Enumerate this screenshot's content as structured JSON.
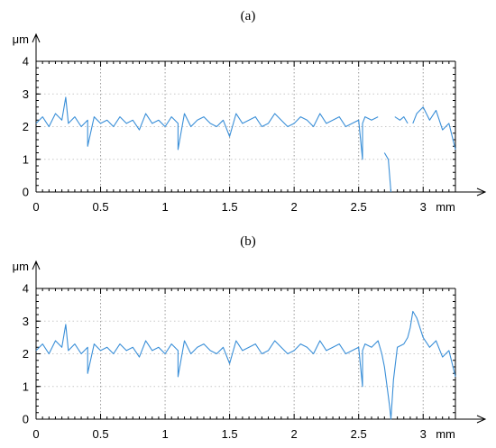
{
  "chart_data": [
    {
      "type": "line",
      "panel_label": "(a)",
      "title": "",
      "xlabel": "mm",
      "ylabel": "μm",
      "xlim": [
        0,
        3.25
      ],
      "ylim": [
        0,
        4
      ],
      "x_ticks": [
        "0",
        "0.5",
        "1",
        "1.5",
        "2",
        "2.5",
        "3"
      ],
      "y_ticks": [
        "0",
        "1",
        "2",
        "3",
        "4"
      ],
      "x_unit": "mm",
      "y_unit": "μm",
      "grid": "dotted vertical",
      "line_color": "#3a8fd8",
      "series": [
        {
          "x": [
            0,
            0.05,
            0.1,
            0.15,
            0.2,
            0.23,
            0.25,
            0.3,
            0.35,
            0.4,
            0.4,
            0.45,
            0.5,
            0.55,
            0.6,
            0.65,
            0.7,
            0.75,
            0.8,
            0.85,
            0.9,
            0.95,
            1.0,
            1.05,
            1.1,
            1.1,
            1.15,
            1.2,
            1.25,
            1.3,
            1.35,
            1.4,
            1.45,
            1.5,
            1.55,
            1.6,
            1.65,
            1.7,
            1.75,
            1.8,
            1.85,
            1.9,
            1.95,
            2.0,
            2.05,
            2.1,
            2.15,
            2.2,
            2.25,
            2.3,
            2.35,
            2.4,
            2.45,
            2.5,
            2.53,
            2.53,
            2.55,
            2.6,
            2.65,
            null,
            2.7,
            2.73,
            2.75,
            null,
            2.78,
            2.82,
            2.85,
            2.88,
            null,
            2.92,
            2.95,
            3.0,
            3.05,
            3.1,
            3.15,
            3.2,
            3.25
          ],
          "y": [
            2.1,
            2.3,
            2.0,
            2.4,
            2.2,
            2.9,
            2.1,
            2.3,
            2.0,
            2.2,
            1.4,
            2.3,
            2.1,
            2.2,
            2.0,
            2.3,
            2.1,
            2.2,
            1.9,
            2.4,
            2.1,
            2.2,
            2.0,
            2.3,
            2.1,
            1.3,
            2.4,
            2.0,
            2.2,
            2.3,
            2.1,
            2.0,
            2.2,
            1.7,
            2.4,
            2.1,
            2.2,
            2.3,
            2.0,
            2.1,
            2.4,
            2.2,
            2.0,
            2.1,
            2.3,
            2.2,
            2.0,
            2.4,
            2.1,
            2.2,
            2.3,
            2.0,
            2.1,
            2.2,
            1.0,
            2.1,
            2.3,
            2.2,
            2.3,
            null,
            1.2,
            1.0,
            0.0,
            null,
            2.3,
            2.2,
            2.3,
            2.1,
            null,
            2.1,
            2.4,
            2.6,
            2.2,
            2.5,
            1.9,
            2.1,
            1.3
          ]
        }
      ]
    },
    {
      "type": "line",
      "panel_label": "(b)",
      "title": "",
      "xlabel": "mm",
      "ylabel": "μm",
      "xlim": [
        0,
        3.25
      ],
      "ylim": [
        0,
        4
      ],
      "x_ticks": [
        "0",
        "0.5",
        "1",
        "1.5",
        "2",
        "2.5",
        "3"
      ],
      "y_ticks": [
        "0",
        "1",
        "2",
        "3",
        "4"
      ],
      "x_unit": "mm",
      "y_unit": "μm",
      "grid": "dotted vertical",
      "line_color": "#3a8fd8",
      "series": [
        {
          "x": [
            0,
            0.05,
            0.1,
            0.15,
            0.2,
            0.23,
            0.25,
            0.3,
            0.35,
            0.4,
            0.4,
            0.45,
            0.5,
            0.55,
            0.6,
            0.65,
            0.7,
            0.75,
            0.8,
            0.85,
            0.9,
            0.95,
            1.0,
            1.05,
            1.1,
            1.1,
            1.15,
            1.2,
            1.25,
            1.3,
            1.35,
            1.4,
            1.45,
            1.5,
            1.55,
            1.6,
            1.65,
            1.7,
            1.75,
            1.8,
            1.85,
            1.9,
            1.95,
            2.0,
            2.05,
            2.1,
            2.15,
            2.2,
            2.25,
            2.3,
            2.35,
            2.4,
            2.45,
            2.5,
            2.53,
            2.53,
            2.55,
            2.6,
            2.65,
            2.68,
            2.7,
            2.72,
            2.74,
            2.75,
            2.77,
            2.8,
            2.85,
            2.88,
            2.9,
            2.92,
            2.95,
            3.0,
            3.05,
            3.1,
            3.15,
            3.2,
            3.25
          ],
          "y": [
            2.1,
            2.3,
            2.0,
            2.4,
            2.2,
            2.9,
            2.1,
            2.3,
            2.0,
            2.2,
            1.4,
            2.3,
            2.1,
            2.2,
            2.0,
            2.3,
            2.1,
            2.2,
            1.9,
            2.4,
            2.1,
            2.2,
            2.0,
            2.3,
            2.1,
            1.3,
            2.4,
            2.0,
            2.2,
            2.3,
            2.1,
            2.0,
            2.2,
            1.7,
            2.4,
            2.1,
            2.2,
            2.3,
            2.0,
            2.1,
            2.4,
            2.2,
            2.0,
            2.1,
            2.3,
            2.2,
            2.0,
            2.4,
            2.1,
            2.2,
            2.3,
            2.0,
            2.1,
            2.2,
            1.0,
            2.1,
            2.3,
            2.2,
            2.4,
            2.0,
            1.6,
            1.0,
            0.4,
            0.0,
            1.2,
            2.2,
            2.3,
            2.5,
            2.8,
            3.3,
            3.1,
            2.5,
            2.2,
            2.4,
            1.9,
            2.1,
            1.3
          ]
        }
      ]
    }
  ]
}
